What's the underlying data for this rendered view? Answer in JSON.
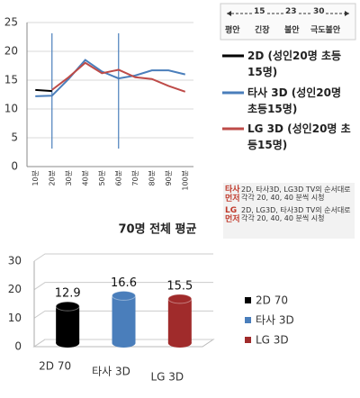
{
  "chart_data": [
    {
      "type": "line",
      "categories": [
        "10분",
        "20분",
        "30분",
        "40분",
        "50분",
        "60분",
        "70분",
        "80분",
        "90분",
        "100분"
      ],
      "series": [
        {
          "name": "2D (성인20명 초등15명)",
          "color": "#000000",
          "values": [
            13.3,
            13.1,
            null,
            null,
            null,
            null,
            null,
            null,
            null,
            null
          ]
        },
        {
          "name": "타사 3D (성인20명 초등15명)",
          "color": "#4a7ebb",
          "values": [
            12.2,
            12.3,
            15.2,
            18.5,
            16.5,
            15.3,
            15.8,
            16.7,
            16.7,
            16.0
          ]
        },
        {
          "name": "LG 3D (성인20명 초등15명)",
          "color": "#be4b48",
          "values": [
            null,
            13.3,
            15.5,
            18.0,
            16.2,
            16.8,
            15.5,
            15.2,
            14.0,
            13.0
          ]
        }
      ],
      "ylim": [
        0,
        25
      ],
      "yticks": [
        0,
        5,
        10,
        15,
        20,
        25
      ]
    },
    {
      "type": "bar3d",
      "title": "70명 전체 평균",
      "categories": [
        "2D 70",
        "타사 3D",
        "LG 3D"
      ],
      "values": [
        12.9,
        16.6,
        15.5
      ],
      "colors": [
        "#000000",
        "#4a7ebb",
        "#a02b2b"
      ],
      "ylim": [
        0,
        30
      ],
      "yticks": [
        0,
        10,
        20,
        30
      ]
    }
  ],
  "scale_box": {
    "ticks": [
      15,
      23,
      30
    ],
    "labels": [
      "평안",
      "긴장",
      "불안",
      "극도불안"
    ]
  },
  "notes": [
    {
      "label": "타사 먼저",
      "text": "2D, 타사3D, LG3D TV의 순서대로 각각 20, 40, 40 분씩 시청"
    },
    {
      "label": "LG 먼저",
      "text": "2D, LG3D, 타사3D TV의 순서대로 각각 20, 40, 40 분씩 시청"
    }
  ]
}
